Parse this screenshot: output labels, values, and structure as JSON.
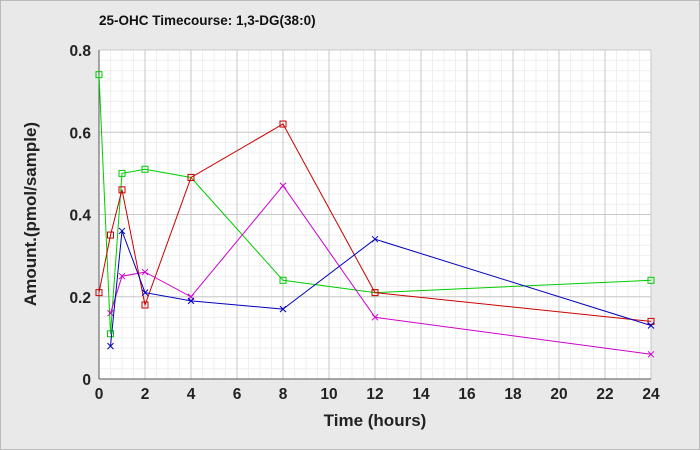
{
  "chart_data": {
    "type": "line",
    "title": "25-OHC Timecourse: 1,3-DG(38:0)",
    "xlabel": "Time (hours)",
    "ylabel": "Amount.(pmol/sample)",
    "xlim": [
      0,
      24
    ],
    "ylim": [
      0,
      0.8
    ],
    "xticks": [
      0,
      2,
      4,
      6,
      8,
      10,
      12,
      14,
      16,
      18,
      20,
      22,
      24
    ],
    "yticks": [
      0,
      0.2,
      0.4,
      0.6,
      0.8
    ],
    "grid": true,
    "legend": "none",
    "series": [
      {
        "color": "#00cc00",
        "marker": "square",
        "points": [
          [
            0,
            0.74
          ],
          [
            0.5,
            0.11
          ],
          [
            1,
            0.5
          ],
          [
            2,
            0.51
          ],
          [
            4,
            0.49
          ],
          [
            8,
            0.24
          ],
          [
            12,
            0.21
          ],
          [
            24,
            0.24
          ]
        ]
      },
      {
        "color": "#cc0000",
        "marker": "square",
        "points": [
          [
            0,
            0.21
          ],
          [
            0.5,
            0.35
          ],
          [
            1,
            0.46
          ],
          [
            2,
            0.18
          ],
          [
            4,
            0.49
          ],
          [
            8,
            0.62
          ],
          [
            12,
            0.21
          ],
          [
            24,
            0.14
          ]
        ]
      },
      {
        "color": "#cc00cc",
        "marker": "x",
        "points": [
          [
            0.5,
            0.16
          ],
          [
            1,
            0.25
          ],
          [
            2,
            0.26
          ],
          [
            4,
            0.2
          ],
          [
            8,
            0.47
          ],
          [
            12,
            0.15
          ],
          [
            24,
            0.06
          ]
        ]
      },
      {
        "color": "#0000bb",
        "marker": "x",
        "points": [
          [
            0.5,
            0.08
          ],
          [
            1,
            0.36
          ],
          [
            2,
            0.21
          ],
          [
            4,
            0.19
          ],
          [
            8,
            0.17
          ],
          [
            12,
            0.34
          ],
          [
            24,
            0.13
          ]
        ]
      }
    ]
  }
}
